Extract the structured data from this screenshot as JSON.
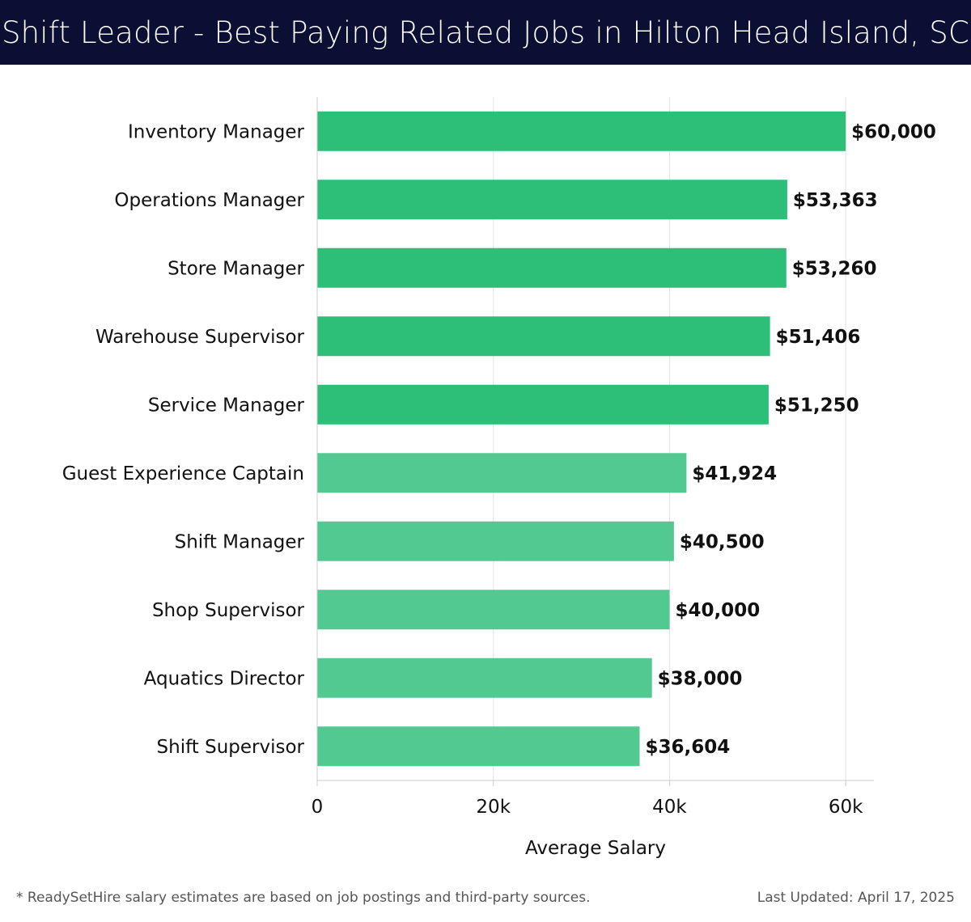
{
  "header": {
    "title": "Shift Leader - Best Paying Related Jobs in Hilton Head Island, SC"
  },
  "chart_data": {
    "type": "bar",
    "orientation": "horizontal",
    "categories": [
      "Inventory Manager",
      "Operations Manager",
      "Store Manager",
      "Warehouse Supervisor",
      "Service Manager",
      "Guest Experience Captain",
      "Shift Manager",
      "Shop Supervisor",
      "Aquatics Director",
      "Shift Supervisor"
    ],
    "values": [
      60000,
      53363,
      53260,
      51406,
      51250,
      41924,
      40500,
      40000,
      38000,
      36604
    ],
    "value_labels": [
      "$60,000",
      "$53,363",
      "$53,260",
      "$51,406",
      "$51,250",
      "$41,924",
      "$40,500",
      "$40,000",
      "$38,000",
      "$36,604"
    ],
    "xlabel": "Average Salary",
    "ylabel": "",
    "xlim": [
      0,
      63200
    ],
    "xticks": [
      0,
      20000,
      40000,
      60000
    ],
    "xtick_labels": [
      "0",
      "20k",
      "40k",
      "60k"
    ],
    "grid": true,
    "colors": {
      "top_bars": "#2bbf78",
      "other_bars": "#52c990",
      "grid": "#e2e2e2",
      "axis": "#cccccc",
      "text": "#111111"
    }
  },
  "footer": {
    "note": "* ReadySetHire salary estimates are based on job postings and third-party sources.",
    "updated": "Last Updated: April 17, 2025"
  }
}
